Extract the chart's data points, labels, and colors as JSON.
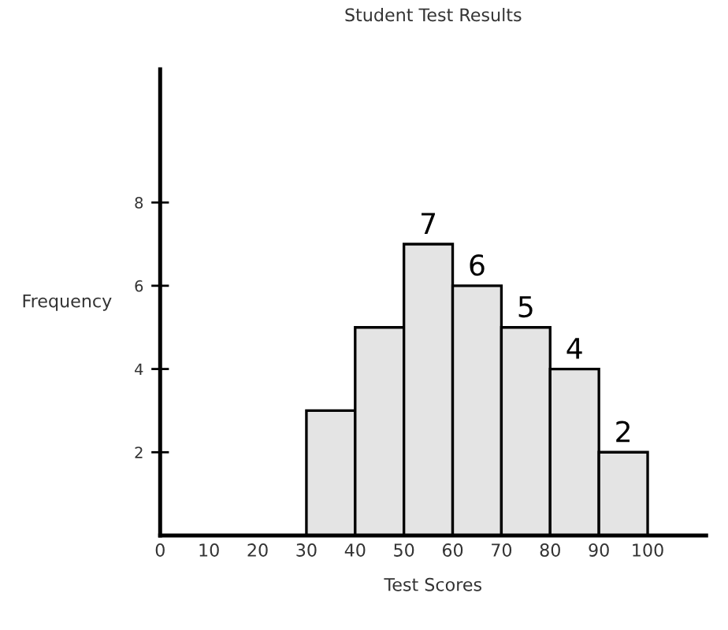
{
  "chart_data": {
    "type": "histogram",
    "title": "Student Test Results",
    "xlabel": "Test Scores",
    "ylabel": "Frequency",
    "bins": [
      30,
      40,
      50,
      60,
      70,
      80,
      90,
      100
    ],
    "values": [
      3,
      5,
      7,
      6,
      5,
      4,
      2
    ],
    "value_labels": [
      null,
      null,
      "7",
      "6",
      "5",
      "4",
      "2"
    ],
    "color": "#e4e4e4",
    "xlim": [
      0,
      112
    ],
    "xticks": [
      0,
      10,
      20,
      30,
      40,
      50,
      60,
      70,
      80,
      90,
      100
    ],
    "ylim": [
      0,
      11.2
    ],
    "yticks": [
      2,
      4,
      6,
      8
    ],
    "grid": false
  }
}
